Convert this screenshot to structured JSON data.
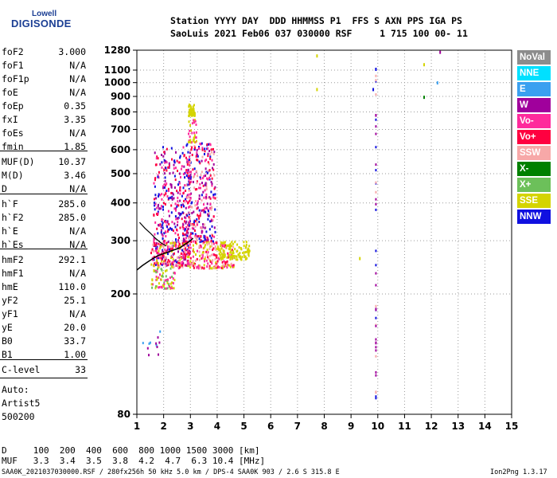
{
  "header": {
    "logo_line1": "Lowell",
    "logo_line2": "DIGISONDE",
    "row1": "Station YYYY DAY  DDD HHMMSS P1  FFS S AXN PPS IGA PS",
    "row2": "SaoLuis 2021 Feb06 037 030000 RSF     1 715 100 00- 11"
  },
  "params": [
    {
      "k": "foF2",
      "v": "3.000"
    },
    {
      "k": "foF1",
      "v": "N/A"
    },
    {
      "k": "foF1p",
      "v": "N/A"
    },
    {
      "k": "foE",
      "v": "N/A"
    },
    {
      "k": "foEp",
      "v": "0.35"
    },
    {
      "k": "fxI",
      "v": "3.35"
    },
    {
      "k": "foEs",
      "v": "N/A"
    },
    {
      "k": "fmin",
      "v": "1.85"
    },
    {
      "k": "MUF(D)",
      "v": "10.37"
    },
    {
      "k": "M(D)",
      "v": "3.46"
    },
    {
      "k": "D",
      "v": "N/A"
    },
    {
      "k": "h`F",
      "v": "285.0"
    },
    {
      "k": "h`F2",
      "v": "285.0"
    },
    {
      "k": "h`E",
      "v": "N/A"
    },
    {
      "k": "h`Es",
      "v": "N/A"
    },
    {
      "k": "hmF2",
      "v": "292.1"
    },
    {
      "k": "hmF1",
      "v": "N/A"
    },
    {
      "k": "hmE",
      "v": "110.0"
    },
    {
      "k": "yF2",
      "v": "25.1"
    },
    {
      "k": "yF1",
      "v": "N/A"
    },
    {
      "k": "yE",
      "v": "20.0"
    },
    {
      "k": "B0",
      "v": "33.7"
    },
    {
      "k": "B1",
      "v": "1.00"
    },
    {
      "k": "C-level",
      "v": "33"
    }
  ],
  "notes": [
    "Auto:",
    "Artist5",
    "500200"
  ],
  "legend": [
    {
      "label": "NoVal",
      "color": "#8c8c8c"
    },
    {
      "label": "NNE",
      "color": "#00e0ff"
    },
    {
      "label": "E",
      "color": "#3aa0f0"
    },
    {
      "label": "W",
      "color": "#a0009c"
    },
    {
      "label": "Vo-",
      "color": "#ff2a9c"
    },
    {
      "label": "Vo+",
      "color": "#ff0040"
    },
    {
      "label": "SSW",
      "color": "#f7a8a8"
    },
    {
      "label": "X-",
      "color": "#008000"
    },
    {
      "label": "X+",
      "color": "#6cc05a"
    },
    {
      "label": "SSE",
      "color": "#d4d400"
    },
    {
      "label": "NNW",
      "color": "#1010e0"
    }
  ],
  "bottom": {
    "row1": "D     100  200  400  600  800 1000 1500 3000 [km]",
    "row2": "MUF   3.3  3.4  3.5  3.8  4.2  4.7  6.3 10.4 [MHz]"
  },
  "footer": {
    "left": "SAA0K_2021037030000.RSF / 280fx256h 50 kHz 5.0 km / DPS-4 SAA0K 903 / 2.6 S 315.8 E",
    "right": "Ion2Png 1.3.17"
  },
  "chart_data": {
    "type": "scatter",
    "title": "",
    "xlabel": "",
    "ylabel": "",
    "xlim": [
      1,
      15
    ],
    "ylim": [
      80,
      1280
    ],
    "y_scale": "log",
    "x_ticks": [
      1,
      2,
      3,
      4,
      5,
      6,
      7,
      8,
      9,
      10,
      11,
      12,
      13,
      14,
      15
    ],
    "y_ticks": [
      80,
      200,
      300,
      400,
      500,
      600,
      700,
      800,
      900,
      1000,
      1100,
      1280
    ],
    "grid": true,
    "legend_position": "right",
    "trace_points": [
      [
        1.0,
        240
      ],
      [
        1.2,
        248
      ],
      [
        1.4,
        255
      ],
      [
        1.6,
        262
      ],
      [
        1.8,
        268
      ],
      [
        2.0,
        272
      ],
      [
        2.2,
        276
      ],
      [
        2.4,
        280
      ],
      [
        2.6,
        284
      ],
      [
        2.8,
        292
      ],
      [
        3.0,
        300
      ],
      [
        3.1,
        306
      ]
    ],
    "trace_points_2": [
      [
        1.1,
        345
      ],
      [
        1.3,
        330
      ],
      [
        1.5,
        318
      ],
      [
        1.7,
        305
      ],
      [
        1.9,
        295
      ],
      [
        2.1,
        288
      ]
    ],
    "echo_clusters": [
      {
        "x": [
          1.6,
          3.0
        ],
        "y": [
          250,
          620
        ],
        "n": 420,
        "colors": [
          "#ff0040",
          "#ff2a9c",
          "#a0009c",
          "#1010e0"
        ]
      },
      {
        "x": [
          2.8,
          3.9
        ],
        "y": [
          300,
          640
        ],
        "n": 320,
        "colors": [
          "#ff0040",
          "#ff2a9c",
          "#a0009c",
          "#1010e0",
          "#f7a8a8"
        ]
      },
      {
        "x": [
          1.5,
          4.6
        ],
        "y": [
          245,
          300
        ],
        "n": 320,
        "colors": [
          "#ff0040",
          "#ff2a9c",
          "#d4d400",
          "#f7a8a8"
        ]
      },
      {
        "x": [
          4.0,
          5.2
        ],
        "y": [
          262,
          300
        ],
        "n": 110,
        "colors": [
          "#d4d400"
        ]
      },
      {
        "x": [
          1.5,
          2.4
        ],
        "y": [
          210,
          245
        ],
        "n": 70,
        "colors": [
          "#6cc05a",
          "#d4d400",
          "#ff2a9c"
        ]
      },
      {
        "x": [
          2.9,
          3.15
        ],
        "y": [
          780,
          855
        ],
        "n": 45,
        "colors": [
          "#d4d400"
        ]
      },
      {
        "x": [
          2.9,
          3.2
        ],
        "y": [
          640,
          760
        ],
        "n": 35,
        "colors": [
          "#d4d400",
          "#ff2a9c"
        ]
      },
      {
        "x": [
          1.2,
          2.0
        ],
        "y": [
          120,
          155
        ],
        "n": 12,
        "colors": [
          "#3aa0f0",
          "#a0009c"
        ]
      }
    ],
    "isolated_points": [
      {
        "x": 7.7,
        "y": 960,
        "color": "#d4d400"
      },
      {
        "x": 7.7,
        "y": 1240,
        "color": "#d4d400"
      },
      {
        "x": 9.3,
        "y": 265,
        "color": "#d4d400"
      },
      {
        "x": 9.8,
        "y": 960,
        "color": "#1010e0"
      },
      {
        "x": 9.9,
        "y": 1120,
        "color": "#1010e0"
      },
      {
        "x": 9.9,
        "y": 180,
        "color": "#a0009c"
      },
      {
        "x": 11.7,
        "y": 905,
        "color": "#008000"
      },
      {
        "x": 11.7,
        "y": 1160,
        "color": "#d4d400"
      },
      {
        "x": 12.2,
        "y": 1010,
        "color": "#3aa0f0"
      },
      {
        "x": 12.3,
        "y": 1275,
        "color": "#a0009c"
      }
    ],
    "vertical_streak": {
      "x": 9.9,
      "y": [
        90,
        1140
      ],
      "colors": [
        "#f7a8a8",
        "#1010e0",
        "#a0009c"
      ]
    }
  }
}
